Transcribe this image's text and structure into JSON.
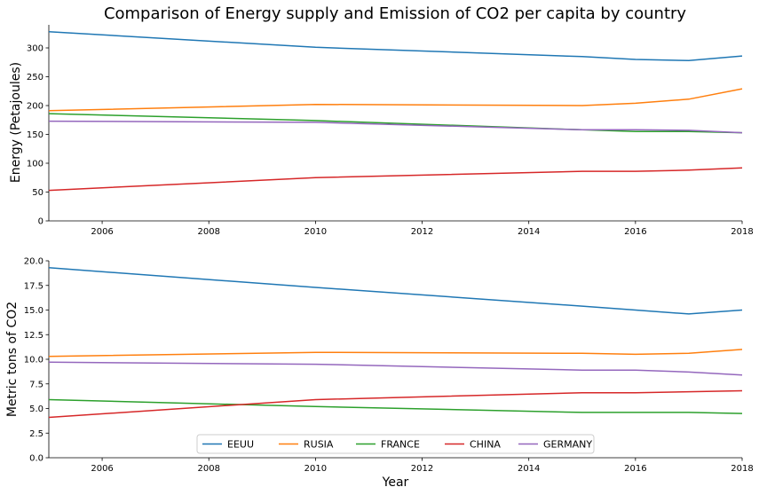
{
  "chart_data": [
    {
      "type": "line",
      "title": "Comparison of Energy supply and Emission of CO2 per capita by country",
      "xlabel": "",
      "ylabel": "Energy (Petajoules)",
      "xlim": [
        2005,
        2018
      ],
      "ylim": [
        0,
        340
      ],
      "x_ticks": [
        "2006",
        "2008",
        "2010",
        "2012",
        "2014",
        "2016",
        "2018"
      ],
      "y_ticks": [
        "0",
        "50",
        "100",
        "150",
        "200",
        "250",
        "300"
      ],
      "grid": false,
      "x": [
        2005,
        2010,
        2015,
        2016,
        2017,
        2018
      ],
      "series": [
        {
          "name": "EEUU",
          "color": "#1f77b4",
          "values": [
            328,
            301,
            285,
            280,
            278,
            286
          ]
        },
        {
          "name": "RUSIA",
          "color": "#ff7f0e",
          "values": [
            191,
            202,
            200,
            204,
            211,
            229
          ]
        },
        {
          "name": "FRANCE",
          "color": "#2ca02c",
          "values": [
            186,
            174,
            158,
            155,
            155,
            153
          ]
        },
        {
          "name": "CHINA",
          "color": "#d62728",
          "values": [
            53,
            75,
            86,
            86,
            88,
            92
          ]
        },
        {
          "name": "GERMANY",
          "color": "#9467bd",
          "values": [
            173,
            171,
            158,
            158,
            157,
            153
          ]
        }
      ]
    },
    {
      "type": "line",
      "title": "",
      "xlabel": "Year",
      "ylabel": "Metric tons of CO2",
      "xlim": [
        2005,
        2018
      ],
      "ylim": [
        0,
        20
      ],
      "x_ticks": [
        "2006",
        "2008",
        "2010",
        "2012",
        "2014",
        "2016",
        "2018"
      ],
      "y_ticks": [
        "0.0",
        "2.5",
        "5.0",
        "7.5",
        "10.0",
        "12.5",
        "15.0",
        "17.5",
        "20.0"
      ],
      "grid": false,
      "legend_placement": "lower-center",
      "x": [
        2005,
        2010,
        2015,
        2016,
        2017,
        2018
      ],
      "series": [
        {
          "name": "EEUU",
          "color": "#1f77b4",
          "values": [
            19.3,
            17.3,
            15.4,
            15.0,
            14.6,
            15.0
          ]
        },
        {
          "name": "RUSIA",
          "color": "#ff7f0e",
          "values": [
            10.3,
            10.7,
            10.6,
            10.5,
            10.6,
            11.0
          ]
        },
        {
          "name": "FRANCE",
          "color": "#2ca02c",
          "values": [
            5.9,
            5.2,
            4.6,
            4.6,
            4.6,
            4.5
          ]
        },
        {
          "name": "CHINA",
          "color": "#d62728",
          "values": [
            4.1,
            5.9,
            6.6,
            6.6,
            6.7,
            6.8
          ]
        },
        {
          "name": "GERMANY",
          "color": "#9467bd",
          "values": [
            9.7,
            9.5,
            8.9,
            8.9,
            8.7,
            8.4
          ]
        }
      ]
    }
  ]
}
